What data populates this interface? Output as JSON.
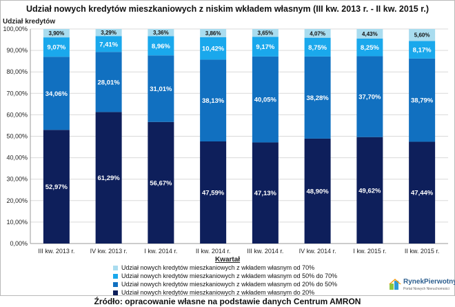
{
  "chart_data": {
    "type": "bar",
    "stacked": true,
    "title": "Udział nowych kredytów mieszkaniowych z niskim wkładem własnym (III kw. 2013 r. - II kw. 2015 r.)",
    "ylabel": "Udział kredytów",
    "xlabel": "Kwartał",
    "ylim": [
      0,
      100
    ],
    "yticks": [
      "0,00%",
      "10,00%",
      "20,00%",
      "30,00%",
      "40,00%",
      "50,00%",
      "60,00%",
      "70,00%",
      "80,00%",
      "90,00%",
      "100,00%"
    ],
    "categories": [
      "III kw. 2013 r.",
      "IV kw. 2013 r.",
      "I kw. 2014 r.",
      "II kw. 2014 r.",
      "III kw. 2014 r.",
      "IV kw. 2014 r.",
      "I kw. 2015 r.",
      "II kw. 2015 r."
    ],
    "series": [
      {
        "name": "Udział nowych kredytów mieszkaniowych z wkładem własnym do 20%",
        "color": "#0e1f5b",
        "label_color": "#ffffff",
        "values": [
          52.97,
          61.29,
          56.67,
          47.59,
          47.13,
          48.9,
          49.62,
          47.44
        ],
        "labels": [
          "52,97%",
          "61,29%",
          "56,67%",
          "47,59%",
          "47,13%",
          "48,90%",
          "49,62%",
          "47,44%"
        ]
      },
      {
        "name": "Udział nowych kredytów mieszkaniowych z wkładem własnym od 20% do 50%",
        "color": "#1170c0",
        "label_color": "#ffffff",
        "values": [
          34.06,
          28.01,
          31.01,
          38.13,
          40.05,
          38.28,
          37.7,
          38.79
        ],
        "labels": [
          "34,06%",
          "28,01%",
          "31,01%",
          "38,13%",
          "40,05%",
          "38,28%",
          "37,70%",
          "38,79%"
        ]
      },
      {
        "name": "Udział nowych kredytów mieszkaniowych z wkładem własnym od 50% do 70%",
        "color": "#1aa8ec",
        "label_color": "#ffffff",
        "values": [
          9.07,
          7.41,
          8.96,
          10.42,
          9.17,
          8.75,
          8.25,
          8.17
        ],
        "labels": [
          "9,07%",
          "7,41%",
          "8,96%",
          "10,42%",
          "9,17%",
          "8,75%",
          "8,25%",
          "8,17%"
        ]
      },
      {
        "name": "Udział nowych kredytów mieszkaniowych z wkładem własnym od 70%",
        "color": "#a9dcef",
        "label_color": "#111111",
        "values": [
          3.9,
          3.29,
          3.36,
          3.86,
          3.65,
          4.07,
          4.43,
          5.6
        ],
        "labels": [
          "3,90%",
          "3,29%",
          "3,36%",
          "3,86%",
          "3,65%",
          "4,07%",
          "4,43%",
          "5,60%"
        ]
      }
    ],
    "legend": [
      {
        "name": "Udział nowych kredytów mieszkaniowych z wkładem własnym od 70%",
        "color": "#a9dcef"
      },
      {
        "name": "Udział nowych kredytów mieszkaniowych z wkładem własnym od 50% do 70%",
        "color": "#1aa8ec"
      },
      {
        "name": "Udział nowych kredytów mieszkaniowych z wkładem własnym od 20% do 50%",
        "color": "#1170c0"
      },
      {
        "name": "Udział nowych kredytów mieszkaniowych z wkładem własnym do 20%",
        "color": "#0e1f5b"
      }
    ],
    "legend_position": "bottom",
    "grid": true
  },
  "logo": {
    "name": "RynekPierwotny",
    "tagline": "Portal Nowych Nieruchomości"
  },
  "source": "Źródło: opracowanie własne na podstawie danych Centrum AMRON"
}
